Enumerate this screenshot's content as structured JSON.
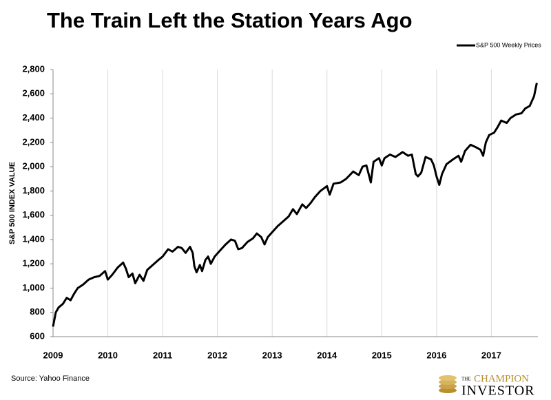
{
  "chart_data": {
    "type": "line",
    "title": "The Train Left the Station Years Ago",
    "y_label": "S&P 500 INDEX VALUE",
    "source": "Source: Yahoo Finance",
    "logo": {
      "top": "THE",
      "middle": "CHAMPION",
      "bottom": "INVESTOR"
    },
    "legend": "top-right",
    "grid": "x",
    "xlim": [
      2009,
      2017.85
    ],
    "xticks": [
      2009,
      2010,
      2011,
      2012,
      2013,
      2014,
      2015,
      2016,
      2017
    ],
    "ylim": [
      600,
      2800
    ],
    "yticks": [
      600,
      800,
      {
        "value": 1000,
        "label": "1,000"
      },
      {
        "value": 1200,
        "label": "1,200"
      },
      {
        "value": 1400,
        "label": "1,400"
      },
      {
        "value": 1600,
        "label": "1,600"
      },
      {
        "value": 1800,
        "label": "1,800"
      },
      {
        "value": 2000,
        "label": "2,000"
      },
      {
        "value": 2200,
        "label": "2,200"
      },
      {
        "value": 2400,
        "label": "2,400"
      },
      {
        "value": 2600,
        "label": "2,600"
      },
      {
        "value": 2800,
        "label": "2,800"
      }
    ],
    "x": [
      2009.0,
      2009.05,
      2009.1,
      2009.18,
      2009.25,
      2009.32,
      2009.38,
      2009.45,
      2009.55,
      2009.65,
      2009.75,
      2009.85,
      2009.95,
      2010.0,
      2010.08,
      2010.18,
      2010.28,
      2010.33,
      2010.38,
      2010.45,
      2010.5,
      2010.58,
      2010.65,
      2010.72,
      2010.82,
      2010.92,
      2011.0,
      2011.1,
      2011.18,
      2011.28,
      2011.35,
      2011.42,
      2011.5,
      2011.55,
      2011.58,
      2011.62,
      2011.68,
      2011.72,
      2011.78,
      2011.83,
      2011.88,
      2011.95,
      2012.05,
      2012.15,
      2012.25,
      2012.32,
      2012.38,
      2012.45,
      2012.55,
      2012.65,
      2012.72,
      2012.8,
      2012.86,
      2012.92,
      2013.0,
      2013.1,
      2013.2,
      2013.3,
      2013.38,
      2013.45,
      2013.55,
      2013.62,
      2013.7,
      2013.78,
      2013.88,
      2014.0,
      2014.05,
      2014.12,
      2014.25,
      2014.35,
      2014.48,
      2014.58,
      2014.65,
      2014.72,
      2014.8,
      2014.85,
      2014.95,
      2015.0,
      2015.05,
      2015.15,
      2015.25,
      2015.38,
      2015.48,
      2015.55,
      2015.62,
      2015.66,
      2015.72,
      2015.8,
      2015.9,
      2015.95,
      2016.0,
      2016.05,
      2016.1,
      2016.18,
      2016.3,
      2016.4,
      2016.45,
      2016.52,
      2016.62,
      2016.72,
      2016.8,
      2016.85,
      2016.9,
      2016.96,
      2017.05,
      2017.12,
      2017.18,
      2017.28,
      2017.35,
      2017.45,
      2017.55,
      2017.62,
      2017.7,
      2017.78,
      2017.83
    ],
    "series": [
      {
        "name": "S&P 500 Weekly Prices",
        "color": "#000000",
        "values": [
          683,
          800,
          840,
          870,
          920,
          900,
          950,
          1000,
          1030,
          1070,
          1090,
          1100,
          1140,
          1070,
          1110,
          1170,
          1210,
          1160,
          1090,
          1120,
          1040,
          1110,
          1060,
          1150,
          1190,
          1230,
          1260,
          1320,
          1300,
          1340,
          1330,
          1290,
          1340,
          1290,
          1180,
          1130,
          1190,
          1140,
          1230,
          1260,
          1200,
          1260,
          1310,
          1360,
          1400,
          1390,
          1320,
          1330,
          1380,
          1410,
          1450,
          1420,
          1360,
          1420,
          1460,
          1510,
          1550,
          1590,
          1650,
          1610,
          1690,
          1660,
          1700,
          1750,
          1800,
          1840,
          1770,
          1860,
          1870,
          1900,
          1960,
          1930,
          2000,
          2010,
          1870,
          2040,
          2070,
          2010,
          2070,
          2100,
          2080,
          2120,
          2090,
          2100,
          1940,
          1920,
          1950,
          2080,
          2060,
          2010,
          1920,
          1850,
          1940,
          2020,
          2060,
          2090,
          2040,
          2130,
          2180,
          2160,
          2140,
          2090,
          2200,
          2260,
          2280,
          2330,
          2380,
          2360,
          2400,
          2430,
          2440,
          2480,
          2500,
          2580,
          2690
        ]
      }
    ]
  }
}
